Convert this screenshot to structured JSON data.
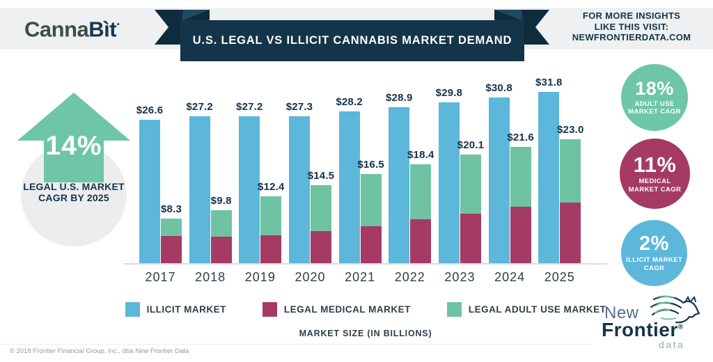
{
  "header": {
    "logo": {
      "part1": "Canna",
      "part2": "Bìt",
      "dot": "·"
    },
    "title": "U.S. LEGAL VS ILLICIT CANNABIS MARKET DEMAND",
    "insights": {
      "line1": "FOR MORE INSIGHTS",
      "line2": "LIKE THIS VISIT:",
      "line3": "NEWFRONTIERDATA.COM"
    }
  },
  "left_stat": {
    "value": "14%",
    "caption_line1": "LEGAL U.S. MARKET",
    "caption_line2": "CAGR BY 2025"
  },
  "chart_data": {
    "type": "bar",
    "title": "U.S. LEGAL VS ILLICIT CANNABIS MARKET DEMAND",
    "categories": [
      "2017",
      "2018",
      "2019",
      "2020",
      "2021",
      "2022",
      "2023",
      "2024",
      "2025"
    ],
    "series": [
      {
        "name": "ILLICIT MARKET",
        "color": "#5cb7da",
        "stack": "illicit",
        "values": [
          26.6,
          27.2,
          27.2,
          27.3,
          28.2,
          28.9,
          29.8,
          30.8,
          31.8
        ]
      },
      {
        "name": "LEGAL MEDICAL MARKET",
        "color": "#a53a64",
        "stack": "legal",
        "values": [
          5.0,
          4.9,
          5.2,
          6.0,
          6.9,
          8.2,
          9.2,
          10.4,
          11.3
        ]
      },
      {
        "name": "LEGAL ADULT USE MARKET",
        "color": "#6fc3a2",
        "stack": "legal",
        "values": [
          3.3,
          4.9,
          7.2,
          8.5,
          9.6,
          10.2,
          10.9,
          11.2,
          11.7
        ]
      }
    ],
    "legal_stack_totals": [
      8.3,
      9.8,
      12.4,
      14.5,
      16.5,
      18.4,
      20.1,
      21.6,
      23.0
    ],
    "illicit_labels": [
      "$26.6",
      "$27.2",
      "$27.2",
      "$27.3",
      "$28.2",
      "$28.9",
      "$29.8",
      "$30.8",
      "$31.8"
    ],
    "legal_total_labels": [
      "$8.3",
      "$9.8",
      "$12.4",
      "$14.5",
      "$16.5",
      "$18.4",
      "$20.1",
      "$21.6",
      "$23.0"
    ],
    "legend": [
      "ILLICIT MARKET",
      "LEGAL MEDICAL MARKET",
      "LEGAL ADULT USE MARKET"
    ],
    "legend_position": "bottom",
    "xlabel": "MARKET SIZE (IN BILLIONS)",
    "ylabel": "",
    "ylim": [
      0,
      33
    ],
    "grid": false
  },
  "stats_circles": [
    {
      "value": "18%",
      "label_line1": "ADULT USE",
      "label_line2": "MARKET CAGR",
      "color": "#6ec6a6"
    },
    {
      "value": "11%",
      "label_line1": "MEDICAL",
      "label_line2": "MARKET CAGR",
      "color": "#a53a64"
    },
    {
      "value": "2%",
      "label_line1": "ILLICIT MARKET",
      "label_line2": "CAGR",
      "color": "#5cb7da"
    }
  ],
  "footer": {
    "copyright": "© 2018 Frontier Financial Group, Inc., dba New Frontier Data",
    "brand": {
      "word1": "New",
      "word2": "Frontier",
      "reg": "®",
      "word3": "data"
    }
  },
  "colors": {
    "navy": "#14344a",
    "ribbon_tail": "#0e2c3e",
    "ribbon_fold": "#1d4b5c",
    "band_gray": "#eef0f1",
    "circle_gray": "#ebedee",
    "illicit_blue": "#5cb7da",
    "medical_maroon": "#a53a64",
    "adult_green": "#6fc3a2",
    "axis_gray": "#d9dcde"
  }
}
